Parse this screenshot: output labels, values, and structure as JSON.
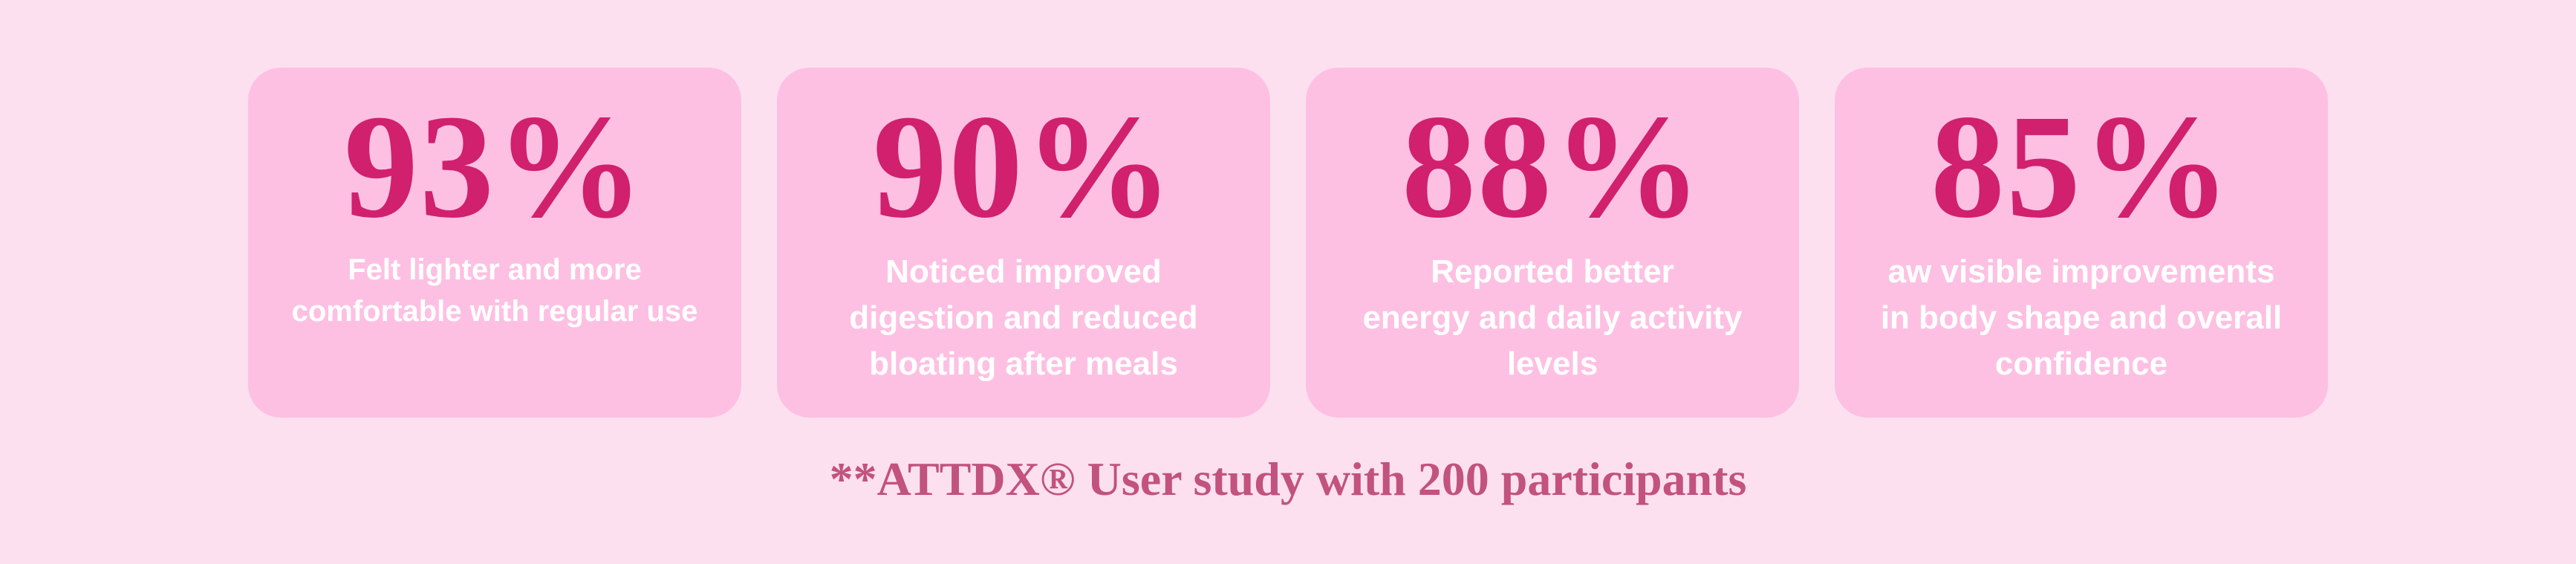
{
  "cards": [
    {
      "stat": "93%",
      "lines": [
        "Felt lighter and more",
        "comfortable with regular use"
      ]
    },
    {
      "stat": "90%",
      "lines": [
        "Noticed improved",
        "digestion and reduced",
        "bloating after meals"
      ]
    },
    {
      "stat": "88%",
      "lines": [
        "Reported better",
        "energy and daily activity",
        "levels"
      ]
    },
    {
      "stat": "85%",
      "lines": [
        "aw visible improvements",
        "in body shape and overall",
        "confidence"
      ]
    }
  ],
  "footnote": "**ATTDX® User study with 200 participants"
}
